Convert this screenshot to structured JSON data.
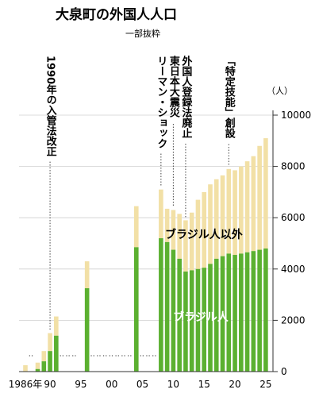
{
  "chart_data": {
    "type": "bar",
    "title": "大泉町の外国人人口",
    "subtitle": "一部抜粋",
    "y_unit": "（人）",
    "ylim": [
      0,
      10000
    ],
    "yticks": [
      0,
      2000,
      4000,
      6000,
      8000,
      10000
    ],
    "xtick_labels": [
      {
        "year": 1986,
        "label": "1986年"
      },
      {
        "year": 1990,
        "label": "90"
      },
      {
        "year": 1995,
        "label": "95"
      },
      {
        "year": 2000,
        "label": "00"
      },
      {
        "year": 2005,
        "label": "05"
      },
      {
        "year": 2010,
        "label": "10"
      },
      {
        "year": 2015,
        "label": "15"
      },
      {
        "year": 2020,
        "label": "20"
      },
      {
        "year": 2025,
        "label": "25"
      }
    ],
    "stacked": true,
    "series": [
      {
        "name": "ブラジル人",
        "color": "#5bb030",
        "role": "bottom"
      },
      {
        "name": "ブラジル人以外",
        "color": "#f2e0a6",
        "role": "top"
      }
    ],
    "data": [
      {
        "year": 1986,
        "brazil": 0,
        "total": 250
      },
      {
        "year": 1988,
        "brazil": 100,
        "total": 350
      },
      {
        "year": 1989,
        "brazil": 400,
        "total": 800
      },
      {
        "year": 1990,
        "brazil": 800,
        "total": 1500
      },
      {
        "year": 1991,
        "brazil": 1400,
        "total": 2150
      },
      {
        "year": 1996,
        "brazil": 3250,
        "total": 4300
      },
      {
        "year": 2004,
        "brazil": 4850,
        "total": 6450
      },
      {
        "year": 2008,
        "brazil": 5200,
        "total": 7100
      },
      {
        "year": 2009,
        "brazil": 5050,
        "total": 6350
      },
      {
        "year": 2010,
        "brazil": 4750,
        "total": 6300
      },
      {
        "year": 2011,
        "brazil": 4400,
        "total": 6150
      },
      {
        "year": 2012,
        "brazil": 3900,
        "total": 5900
      },
      {
        "year": 2013,
        "brazil": 3950,
        "total": 6200
      },
      {
        "year": 2014,
        "brazil": 4000,
        "total": 6700
      },
      {
        "year": 2015,
        "brazil": 4050,
        "total": 7000
      },
      {
        "year": 2016,
        "brazil": 4200,
        "total": 7300
      },
      {
        "year": 2017,
        "brazil": 4400,
        "total": 7500
      },
      {
        "year": 2018,
        "brazil": 4500,
        "total": 7650
      },
      {
        "year": 2019,
        "brazil": 4600,
        "total": 7900
      },
      {
        "year": 2020,
        "brazil": 4550,
        "total": 7850
      },
      {
        "year": 2021,
        "brazil": 4600,
        "total": 8000
      },
      {
        "year": 2022,
        "brazil": 4650,
        "total": 8200
      },
      {
        "year": 2023,
        "brazil": 4700,
        "total": 8400
      },
      {
        "year": 2024,
        "brazil": 4750,
        "total": 8800
      },
      {
        "year": 2025,
        "brazil": 4800,
        "total": 9100
      }
    ],
    "gap_years": [
      1987,
      1992,
      1993,
      1994,
      1997,
      1998,
      1999,
      2000,
      2001,
      2002,
      2003,
      2005,
      2006,
      2007
    ],
    "annotations": [
      {
        "year": 1990,
        "text": "1990年の入管法改正"
      },
      {
        "year": 2008,
        "text": "リーマン・ショック"
      },
      {
        "year": 2010,
        "text": "東日本大震災"
      },
      {
        "year": 2012,
        "text": "外国人登録法廃止"
      },
      {
        "year": 2019,
        "text": "「特定技能」創設"
      }
    ]
  }
}
